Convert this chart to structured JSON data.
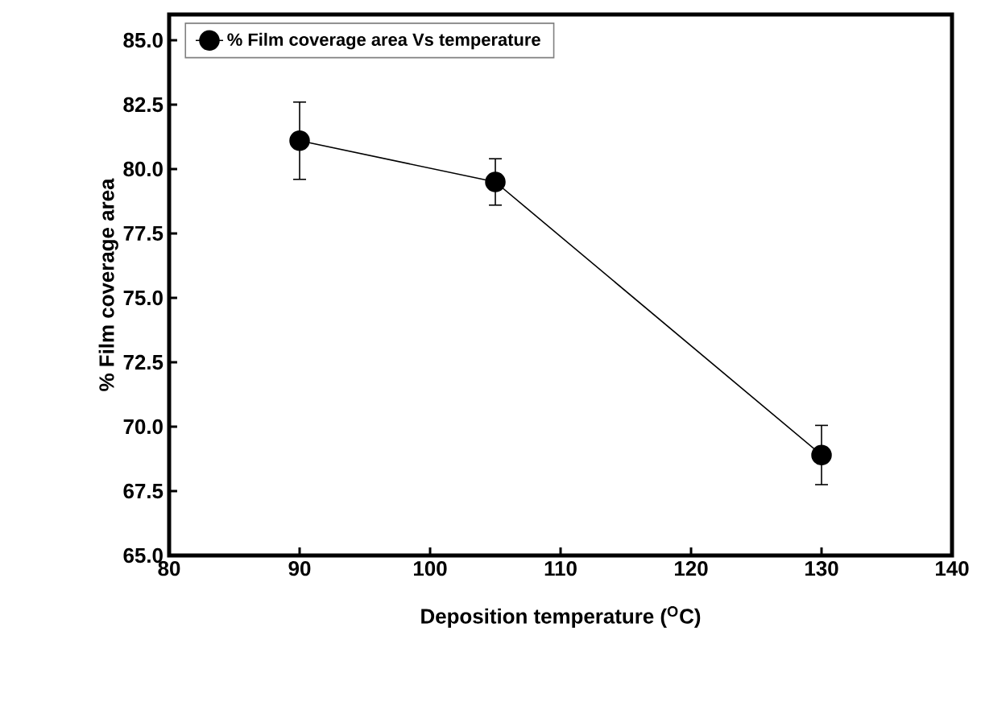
{
  "chart_data": {
    "type": "line",
    "xlabel": "Deposition temperature ($^{O}$C)",
    "ylabel": "% Film coverage area",
    "x": [
      90,
      105,
      130
    ],
    "series": [
      {
        "name": "% Film coverage area Vs temperature",
        "color": "#000000",
        "values": [
          81.1,
          79.5,
          68.9
        ],
        "errors": [
          1.5,
          0.9,
          1.15
        ]
      }
    ],
    "xlim": [
      80,
      140
    ],
    "xticks": [
      80,
      90,
      100,
      110,
      120,
      130,
      140
    ],
    "ylim": [
      65,
      86
    ],
    "yticks": [
      {
        "value": 65,
        "label": "65.0"
      },
      {
        "value": 67.5,
        "label": "67.5"
      },
      {
        "value": 70,
        "label": "70.0"
      },
      {
        "value": 72.5,
        "label": "72.5"
      },
      {
        "value": 75,
        "label": "75.0"
      },
      {
        "value": 77.5,
        "label": "77.5"
      },
      {
        "value": 80,
        "label": "80.0"
      },
      {
        "value": 82.5,
        "label": "82.5"
      },
      {
        "value": 85,
        "label": "85.0"
      }
    ],
    "grid": false,
    "legend": "top left",
    "marker": "circle",
    "line_style": "solid"
  }
}
